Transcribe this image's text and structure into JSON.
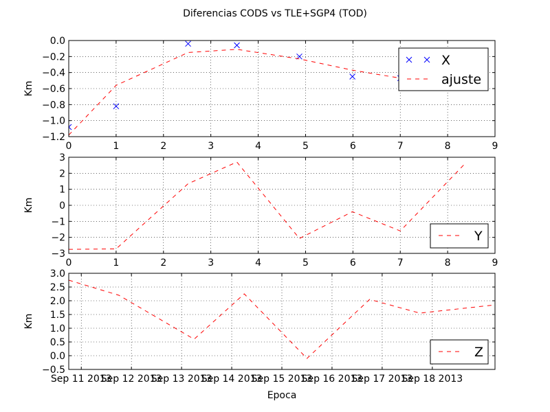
{
  "figure": {
    "title": "Diferencias CODS vs TLE+SGP4 (TOD)"
  },
  "chart_data": [
    {
      "type": "scatter",
      "ylabel": "Km",
      "xlim": [
        0,
        9
      ],
      "ylim": [
        -1.2,
        0.0
      ],
      "x_ticks": [
        "0",
        "1",
        "2",
        "3",
        "4",
        "5",
        "6",
        "7",
        "8",
        "9"
      ],
      "y_ticks": [
        "−1.2",
        "−1.0",
        "−0.8",
        "−0.6",
        "−0.4",
        "−0.2",
        "0.0"
      ],
      "grid": true,
      "legend": {
        "placement": "top-right",
        "entries": [
          "X",
          "ajuste"
        ]
      },
      "series": [
        {
          "name": "X",
          "marker": "x",
          "color": "#0000ff",
          "x": [
            0.0,
            1.0,
            2.52,
            3.55,
            4.87,
            5.99,
            7.0,
            8.35
          ],
          "y": [
            -1.08,
            -0.82,
            -0.04,
            -0.06,
            -0.2,
            -0.45,
            -0.47,
            -0.58
          ]
        },
        {
          "name": "ajuste",
          "style": "dashed",
          "color": "#ff0000",
          "x": [
            0.0,
            1.0,
            2.52,
            3.55,
            4.87,
            5.99,
            7.0,
            8.35
          ],
          "y": [
            -1.18,
            -0.56,
            -0.15,
            -0.11,
            -0.23,
            -0.37,
            -0.47,
            -0.55
          ]
        }
      ]
    },
    {
      "type": "line",
      "ylabel": "Km",
      "xlim": [
        0,
        9
      ],
      "ylim": [
        -3,
        3
      ],
      "x_ticks": [
        "0",
        "1",
        "2",
        "3",
        "4",
        "5",
        "6",
        "7",
        "8",
        "9"
      ],
      "y_ticks": [
        "−3",
        "−2",
        "−1",
        "0",
        "1",
        "2",
        "3"
      ],
      "grid": true,
      "legend": {
        "placement": "lower-right",
        "entries": [
          "Y"
        ]
      },
      "series": [
        {
          "name": "Y",
          "style": "dashed",
          "color": "#ff0000",
          "x": [
            0.0,
            1.0,
            2.52,
            3.55,
            4.87,
            5.99,
            7.0,
            8.35
          ],
          "y": [
            -2.75,
            -2.72,
            1.35,
            2.7,
            -2.07,
            -0.4,
            -1.6,
            2.55
          ]
        }
      ]
    },
    {
      "type": "line",
      "ylabel": "Km",
      "xlabel": "Epoca",
      "xlim": [
        "2013-09-10 18:00",
        "2013-09-19 06:00"
      ],
      "ylim": [
        -0.5,
        3.0
      ],
      "x_ticks": [
        "Sep 11 2013",
        "Sep 12 2013",
        "Sep 13 2013",
        "Sep 14 2013",
        "Sep 15 2013",
        "Sep 16 2013",
        "Sep 17 2013",
        "Sep 18 2013"
      ],
      "y_ticks": [
        "−0.5",
        "0.0",
        "0.5",
        "1.0",
        "1.5",
        "2.0",
        "2.5",
        "3.0"
      ],
      "grid": true,
      "legend": {
        "placement": "lower-right",
        "entries": [
          "Z"
        ]
      },
      "series": [
        {
          "name": "Z",
          "style": "dashed",
          "color": "#ff0000",
          "x": [
            "2013-09-10 18:00",
            "2013-09-11 18:00",
            "2013-09-13 06:00",
            "2013-09-14 06:00",
            "2013-09-15 12:00",
            "2013-09-16 18:00",
            "2013-09-17 18:00",
            "2013-09-19 06:00"
          ],
          "y": [
            2.75,
            2.2,
            0.6,
            2.25,
            -0.1,
            2.05,
            1.55,
            1.85
          ]
        }
      ]
    }
  ]
}
